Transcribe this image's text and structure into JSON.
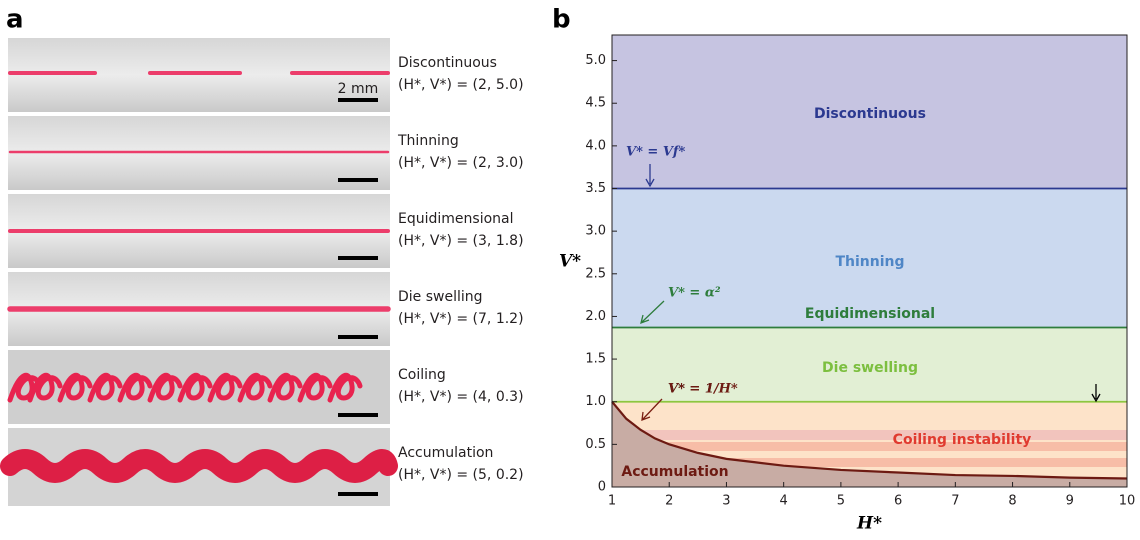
{
  "panel_a": {
    "label": "a",
    "scale_bar": "2 mm",
    "items": [
      {
        "name": "Discontinuous",
        "params": "(H*, V*) = (2, 5.0)"
      },
      {
        "name": "Thinning",
        "params": "(H*, V*) = (2, 3.0)"
      },
      {
        "name": "Equidimensional",
        "params": "(H*, V*) = (3, 1.8)"
      },
      {
        "name": "Die swelling",
        "params": "(H*, V*) = (7, 1.2)"
      },
      {
        "name": "Coiling",
        "params": "(H*, V*) = (4, 0.3)"
      },
      {
        "name": "Accumulation",
        "params": "(H*, V*) = (5, 0.2)"
      }
    ]
  },
  "panel_b": {
    "label": "b"
  },
  "chart_data": {
    "type": "phase",
    "x_label": "H*",
    "y_label": "V*",
    "xlim": [
      1,
      10
    ],
    "ylim": [
      0,
      5.3
    ],
    "xticks": [
      1,
      2,
      3,
      4,
      5,
      6,
      7,
      8,
      9,
      10
    ],
    "yticks": [
      0,
      0.5,
      {
        "value": 1,
        "label": "1.0"
      },
      1.5,
      {
        "value": 2,
        "label": "2.0"
      },
      2.5,
      {
        "value": 3,
        "label": "3.0"
      },
      3.5,
      {
        "value": 4,
        "label": "4.0"
      },
      4.5,
      {
        "value": 5,
        "label": "5.0"
      }
    ],
    "fills": [
      "#c6c4e1",
      "#cbd9ef",
      "#e2efd4",
      "#fde3c9",
      "#c8aca4"
    ],
    "boundaries": [
      {
        "name": "V* = Vf*",
        "value": 3.5,
        "color": "#2b3990"
      },
      {
        "name": "V* = α²",
        "value": 1.87,
        "color": "#2e7d3c"
      },
      {
        "name": "V* = 1",
        "value": 1,
        "color": "#8dc63f"
      }
    ],
    "curve": {
      "name": "V* = 1/H*",
      "color": "#6d1a12",
      "x": [
        1,
        1.25,
        1.5,
        1.75,
        2,
        2.5,
        3,
        3.5,
        4,
        5,
        6,
        7,
        8,
        9,
        10
      ],
      "values": [
        1,
        0.8,
        0.67,
        0.57,
        0.5,
        0.4,
        0.33,
        0.29,
        0.25,
        0.2,
        0.17,
        0.14,
        0.13,
        0.11,
        0.1
      ]
    },
    "regions": [
      {
        "name": "Discontinuous",
        "color": "#2b3990"
      },
      {
        "name": "Thinning",
        "color": "#4f86c6"
      },
      {
        "name": "Equidimensional",
        "color": "#2e7d3c"
      },
      {
        "name": "Die swelling",
        "color": "#7cbf3f"
      },
      {
        "name": "Coiling instability",
        "color": "#e03a2f"
      },
      {
        "name": "Accumulation",
        "color": "#6d1a12"
      }
    ]
  }
}
